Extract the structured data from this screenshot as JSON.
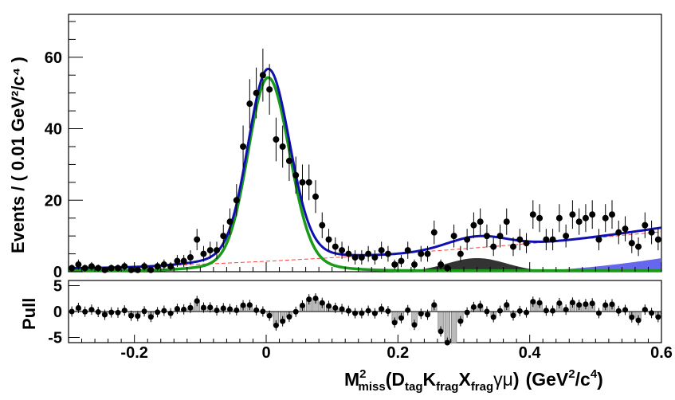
{
  "chart_data": [
    {
      "type": "scatter",
      "name": "main",
      "ylabel": "Events / ( 0.01 GeV²/c⁴ )",
      "xlim": [
        -0.3,
        0.6
      ],
      "ylim": [
        0,
        72
      ],
      "x_ticks": [
        -0.2,
        0,
        0.2,
        0.4,
        0.6
      ],
      "x_tick_labels": [
        "-0.2",
        "0",
        "0.2",
        "0.4",
        "0.6"
      ],
      "y_ticks": [
        0,
        20,
        40,
        60
      ],
      "y_tick_labels": [
        "0",
        "20",
        "40",
        "60"
      ],
      "points": {
        "x": [
          -0.295,
          -0.285,
          -0.275,
          -0.265,
          -0.255,
          -0.245,
          -0.235,
          -0.225,
          -0.215,
          -0.205,
          -0.195,
          -0.185,
          -0.175,
          -0.165,
          -0.155,
          -0.145,
          -0.135,
          -0.125,
          -0.115,
          -0.105,
          -0.095,
          -0.085,
          -0.075,
          -0.065,
          -0.055,
          -0.045,
          -0.035,
          -0.025,
          -0.015,
          -0.005,
          0.005,
          0.015,
          0.025,
          0.035,
          0.045,
          0.055,
          0.065,
          0.075,
          0.085,
          0.095,
          0.105,
          0.115,
          0.125,
          0.135,
          0.145,
          0.155,
          0.165,
          0.175,
          0.185,
          0.195,
          0.205,
          0.215,
          0.225,
          0.235,
          0.245,
          0.255,
          0.265,
          0.275,
          0.285,
          0.295,
          0.305,
          0.315,
          0.325,
          0.335,
          0.345,
          0.355,
          0.365,
          0.375,
          0.385,
          0.395,
          0.405,
          0.415,
          0.425,
          0.435,
          0.445,
          0.455,
          0.465,
          0.475,
          0.485,
          0.495,
          0.505,
          0.515,
          0.525,
          0.535,
          0.545,
          0.555,
          0.565,
          0.575,
          0.585,
          0.595
        ],
        "y": [
          1,
          2,
          1,
          1.5,
          1,
          0.5,
          1,
          1,
          1.5,
          0.5,
          0.5,
          1.5,
          0.5,
          1.5,
          2,
          1.5,
          3,
          3,
          4,
          9,
          5,
          6,
          6,
          10,
          14,
          20,
          35,
          47,
          50,
          55,
          51,
          37,
          35,
          31,
          27,
          25,
          25,
          21,
          13,
          9,
          7,
          6,
          5,
          4,
          4,
          5,
          4,
          6,
          5,
          2,
          3,
          6,
          2,
          5,
          5,
          11,
          2,
          1,
          10,
          5,
          9,
          13,
          14,
          10,
          7,
          10,
          14,
          7,
          9,
          8,
          16,
          15,
          9,
          9,
          15,
          10,
          16,
          14,
          15,
          16,
          9,
          15,
          16,
          11,
          12,
          8,
          7,
          13,
          11,
          9
        ],
        "errors": [
          1,
          1.4,
          1,
          1.2,
          1,
          0.7,
          1,
          1,
          1.2,
          0.7,
          0.7,
          1.2,
          0.7,
          1.2,
          1.4,
          1.2,
          1.7,
          1.7,
          2,
          3,
          2.2,
          2.4,
          2.4,
          3.2,
          3.7,
          4.5,
          5.9,
          6.9,
          7.1,
          7.4,
          7.1,
          6.1,
          5.9,
          5.6,
          5.2,
          5,
          5,
          4.6,
          3.6,
          3,
          2.6,
          2.4,
          2.2,
          2,
          2,
          2.2,
          2,
          2.4,
          2.2,
          1.4,
          1.7,
          2.4,
          1.4,
          2.2,
          2.2,
          3.3,
          1.4,
          1,
          3.2,
          2.2,
          3,
          3.6,
          3.7,
          3.2,
          2.6,
          3.2,
          3.7,
          2.6,
          3,
          2.8,
          4,
          3.9,
          3,
          3,
          3.9,
          3.2,
          4,
          3.7,
          3.9,
          4,
          3,
          3.9,
          4,
          3.3,
          3.5,
          2.8,
          2.6,
          3.6,
          3.3,
          3
        ]
      },
      "curves": {
        "total_color": "#1010b0",
        "signal_color": "#1a9a1a",
        "background_line_color": "#ff4040",
        "dark_bump_color": "#333333",
        "blue_band_color": "#6666ee"
      }
    },
    {
      "type": "scatter",
      "name": "pull",
      "ylabel": "Pull",
      "xlim": [
        -0.3,
        0.6
      ],
      "ylim": [
        -6,
        6
      ],
      "y_ticks": [
        -5,
        0,
        5
      ],
      "y_tick_labels": [
        "-5",
        "0",
        "5"
      ],
      "outlier_x": 0.285,
      "outlier_pull": -6
    }
  ],
  "xlabel": {
    "prefix": "M",
    "sup": "2",
    "sub": "miss",
    "open": "(D",
    "tag": "tag",
    "k": "K",
    "frag1": "frag",
    "x": "X",
    "frag2": "frag",
    "gamma_mu": "γμ",
    "close": ")",
    "unit_open": "(GeV",
    "unit_sup1": "2",
    "unit_mid": "/c",
    "unit_sup2": "4",
    "unit_close": ")"
  }
}
